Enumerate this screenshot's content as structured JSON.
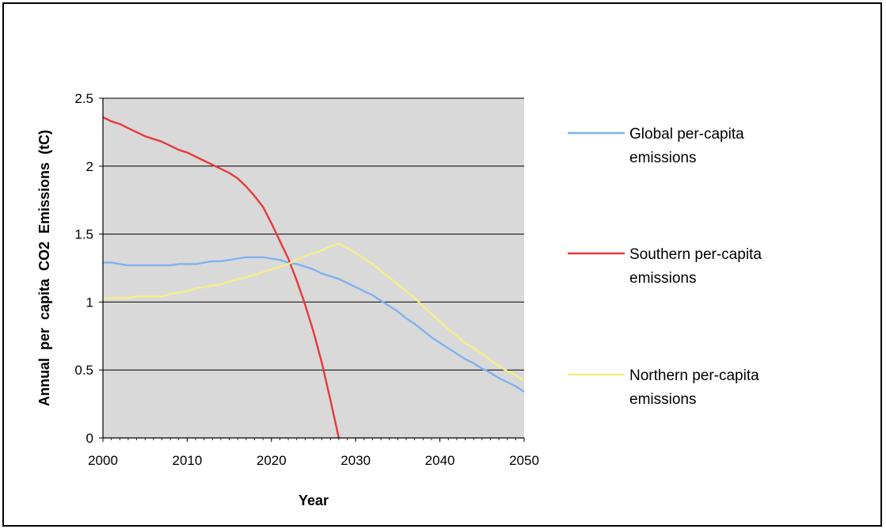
{
  "chart_data": {
    "type": "line",
    "xlabel": "Year",
    "ylabel": "Annual  per  capita  CO2  Emissions  (tC)",
    "xlim": [
      2000,
      2050
    ],
    "ylim": [
      0,
      2.5
    ],
    "x_ticks": [
      "2000",
      "2010",
      "2020",
      "2030",
      "2040",
      "2050"
    ],
    "y_ticks": [
      "0",
      "0.5",
      "1",
      "1.5",
      "2",
      "2.5"
    ],
    "grid": "horizontal",
    "legend_position": "right",
    "plot_background": "#d9d9d9",
    "series": [
      {
        "name_lines": [
          "Global per-capita",
          "emissions"
        ],
        "color": "#7fb2ee",
        "x": [
          2000,
          2001,
          2002,
          2003,
          2004,
          2005,
          2006,
          2007,
          2008,
          2009,
          2010,
          2011,
          2012,
          2013,
          2014,
          2015,
          2016,
          2017,
          2018,
          2019,
          2020,
          2021,
          2022,
          2023,
          2024,
          2025,
          2026,
          2027,
          2028,
          2029,
          2030,
          2031,
          2032,
          2033,
          2034,
          2035,
          2036,
          2037,
          2038,
          2039,
          2040,
          2041,
          2042,
          2043,
          2044,
          2045,
          2046,
          2047,
          2048,
          2049,
          2050
        ],
        "values": [
          1.29,
          1.29,
          1.28,
          1.27,
          1.27,
          1.27,
          1.27,
          1.27,
          1.27,
          1.28,
          1.28,
          1.28,
          1.29,
          1.3,
          1.3,
          1.31,
          1.32,
          1.33,
          1.33,
          1.33,
          1.32,
          1.31,
          1.29,
          1.28,
          1.26,
          1.24,
          1.21,
          1.19,
          1.17,
          1.14,
          1.11,
          1.08,
          1.05,
          1.01,
          0.97,
          0.93,
          0.88,
          0.84,
          0.79,
          0.74,
          0.7,
          0.66,
          0.62,
          0.58,
          0.55,
          0.51,
          0.48,
          0.44,
          0.41,
          0.38,
          0.34
        ]
      },
      {
        "name_lines": [
          "Southern per-capita",
          "emissions"
        ],
        "color": "#e8383a",
        "x": [
          2000,
          2001,
          2002,
          2003,
          2004,
          2005,
          2006,
          2007,
          2008,
          2009,
          2010,
          2011,
          2012,
          2013,
          2014,
          2015,
          2016,
          2017,
          2018,
          2019,
          2020,
          2021,
          2022,
          2023,
          2024,
          2025,
          2026,
          2027,
          2028
        ],
        "values": [
          2.36,
          2.33,
          2.31,
          2.28,
          2.25,
          2.22,
          2.2,
          2.18,
          2.15,
          2.12,
          2.1,
          2.07,
          2.04,
          2.01,
          1.98,
          1.95,
          1.91,
          1.85,
          1.78,
          1.7,
          1.58,
          1.45,
          1.32,
          1.16,
          0.98,
          0.78,
          0.55,
          0.28,
          0.0
        ]
      },
      {
        "name_lines": [
          "Northern per-capita",
          "emissions"
        ],
        "color": "#f5ee8a",
        "x": [
          2000,
          2001,
          2002,
          2003,
          2004,
          2005,
          2006,
          2007,
          2008,
          2009,
          2010,
          2011,
          2012,
          2013,
          2014,
          2015,
          2016,
          2017,
          2018,
          2019,
          2020,
          2021,
          2022,
          2023,
          2024,
          2025,
          2026,
          2027,
          2028,
          2029,
          2030,
          2031,
          2032,
          2033,
          2034,
          2035,
          2036,
          2037,
          2038,
          2039,
          2040,
          2041,
          2042,
          2043,
          2044,
          2045,
          2046,
          2047,
          2048,
          2049,
          2050
        ],
        "values": [
          1.03,
          1.03,
          1.03,
          1.03,
          1.04,
          1.04,
          1.04,
          1.04,
          1.06,
          1.07,
          1.08,
          1.1,
          1.11,
          1.12,
          1.13,
          1.15,
          1.17,
          1.18,
          1.2,
          1.22,
          1.24,
          1.26,
          1.28,
          1.31,
          1.34,
          1.36,
          1.38,
          1.41,
          1.43,
          1.4,
          1.36,
          1.32,
          1.28,
          1.23,
          1.18,
          1.13,
          1.08,
          1.03,
          0.97,
          0.91,
          0.86,
          0.8,
          0.75,
          0.7,
          0.66,
          0.62,
          0.57,
          0.53,
          0.49,
          0.46,
          0.42
        ]
      }
    ]
  }
}
